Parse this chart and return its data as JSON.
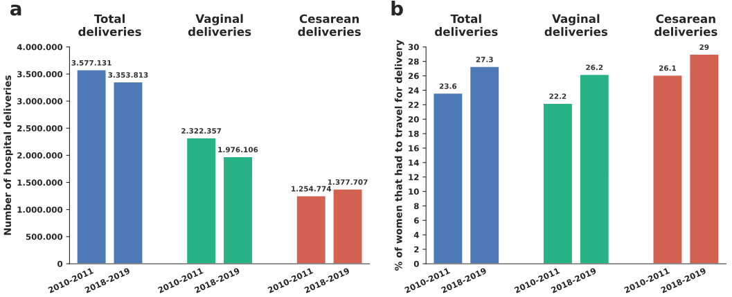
{
  "chart_data": [
    {
      "type": "bar",
      "title": "a",
      "ylabel": "Number of hospital deliveries",
      "categories": [
        "2010-2011",
        "2018-2019",
        null,
        "2010-2011",
        "2018-2019",
        null,
        "2010-2011",
        "2018-2019"
      ],
      "values": [
        3577131,
        3353813,
        null,
        2322357,
        1976106,
        null,
        1254774,
        1377707
      ],
      "colors": [
        "#4e79b7",
        "#4e79b7",
        "#ffffff",
        "#27b386",
        "#27b386",
        "#ffffff",
        "#d26352",
        "#d26352"
      ],
      "value_labels": [
        "3.577.131",
        "3.353.813",
        null,
        "2.322.357",
        "1.976.106",
        null,
        "1.254.774",
        "1.377.707"
      ],
      "ylim": [
        0,
        4000000
      ],
      "yticks": [
        0,
        {
          "value": 500000,
          "label": "500.000"
        },
        {
          "value": 1000000,
          "label": "1.000.000"
        },
        {
          "value": 1500000,
          "label": "1.500.000"
        },
        {
          "value": 2000000,
          "label": "2.000.000"
        },
        {
          "value": 2500000,
          "label": "2.500.000"
        },
        {
          "value": 3000000,
          "label": "3.000.000"
        },
        {
          "value": 3500000,
          "label": "3.500.000"
        },
        {
          "value": 4000000,
          "label": "4.000.000"
        }
      ],
      "annotations": [
        "Total\ndeliveries",
        "Vaginal\ndeliveries",
        "Cesarean\ndeliveries"
      ],
      "grid": false,
      "legend": false
    },
    {
      "type": "bar",
      "title": "b",
      "ylabel": "% of women that had to travel for delivery",
      "categories": [
        "2010-2011",
        "2018-2019",
        null,
        "2010-2011",
        "2018-2019",
        null,
        "2010-2011",
        "2018-2019"
      ],
      "values": [
        23.6,
        27.3,
        null,
        22.2,
        26.2,
        null,
        26.1,
        29
      ],
      "colors": [
        "#4e79b7",
        "#4e79b7",
        "#ffffff",
        "#27b386",
        "#27b386",
        "#ffffff",
        "#d26352",
        "#d26352"
      ],
      "data_labels": true,
      "ylim": [
        0,
        30
      ],
      "yticks": [
        0,
        2,
        4,
        6,
        8,
        10,
        12,
        14,
        16,
        18,
        20,
        22,
        24,
        26,
        28,
        30
      ],
      "annotations": [
        "Total\ndeliveries",
        "Vaginal\ndeliveries",
        "Cesarean\ndeliveries"
      ],
      "grid": false,
      "legend": false
    }
  ]
}
